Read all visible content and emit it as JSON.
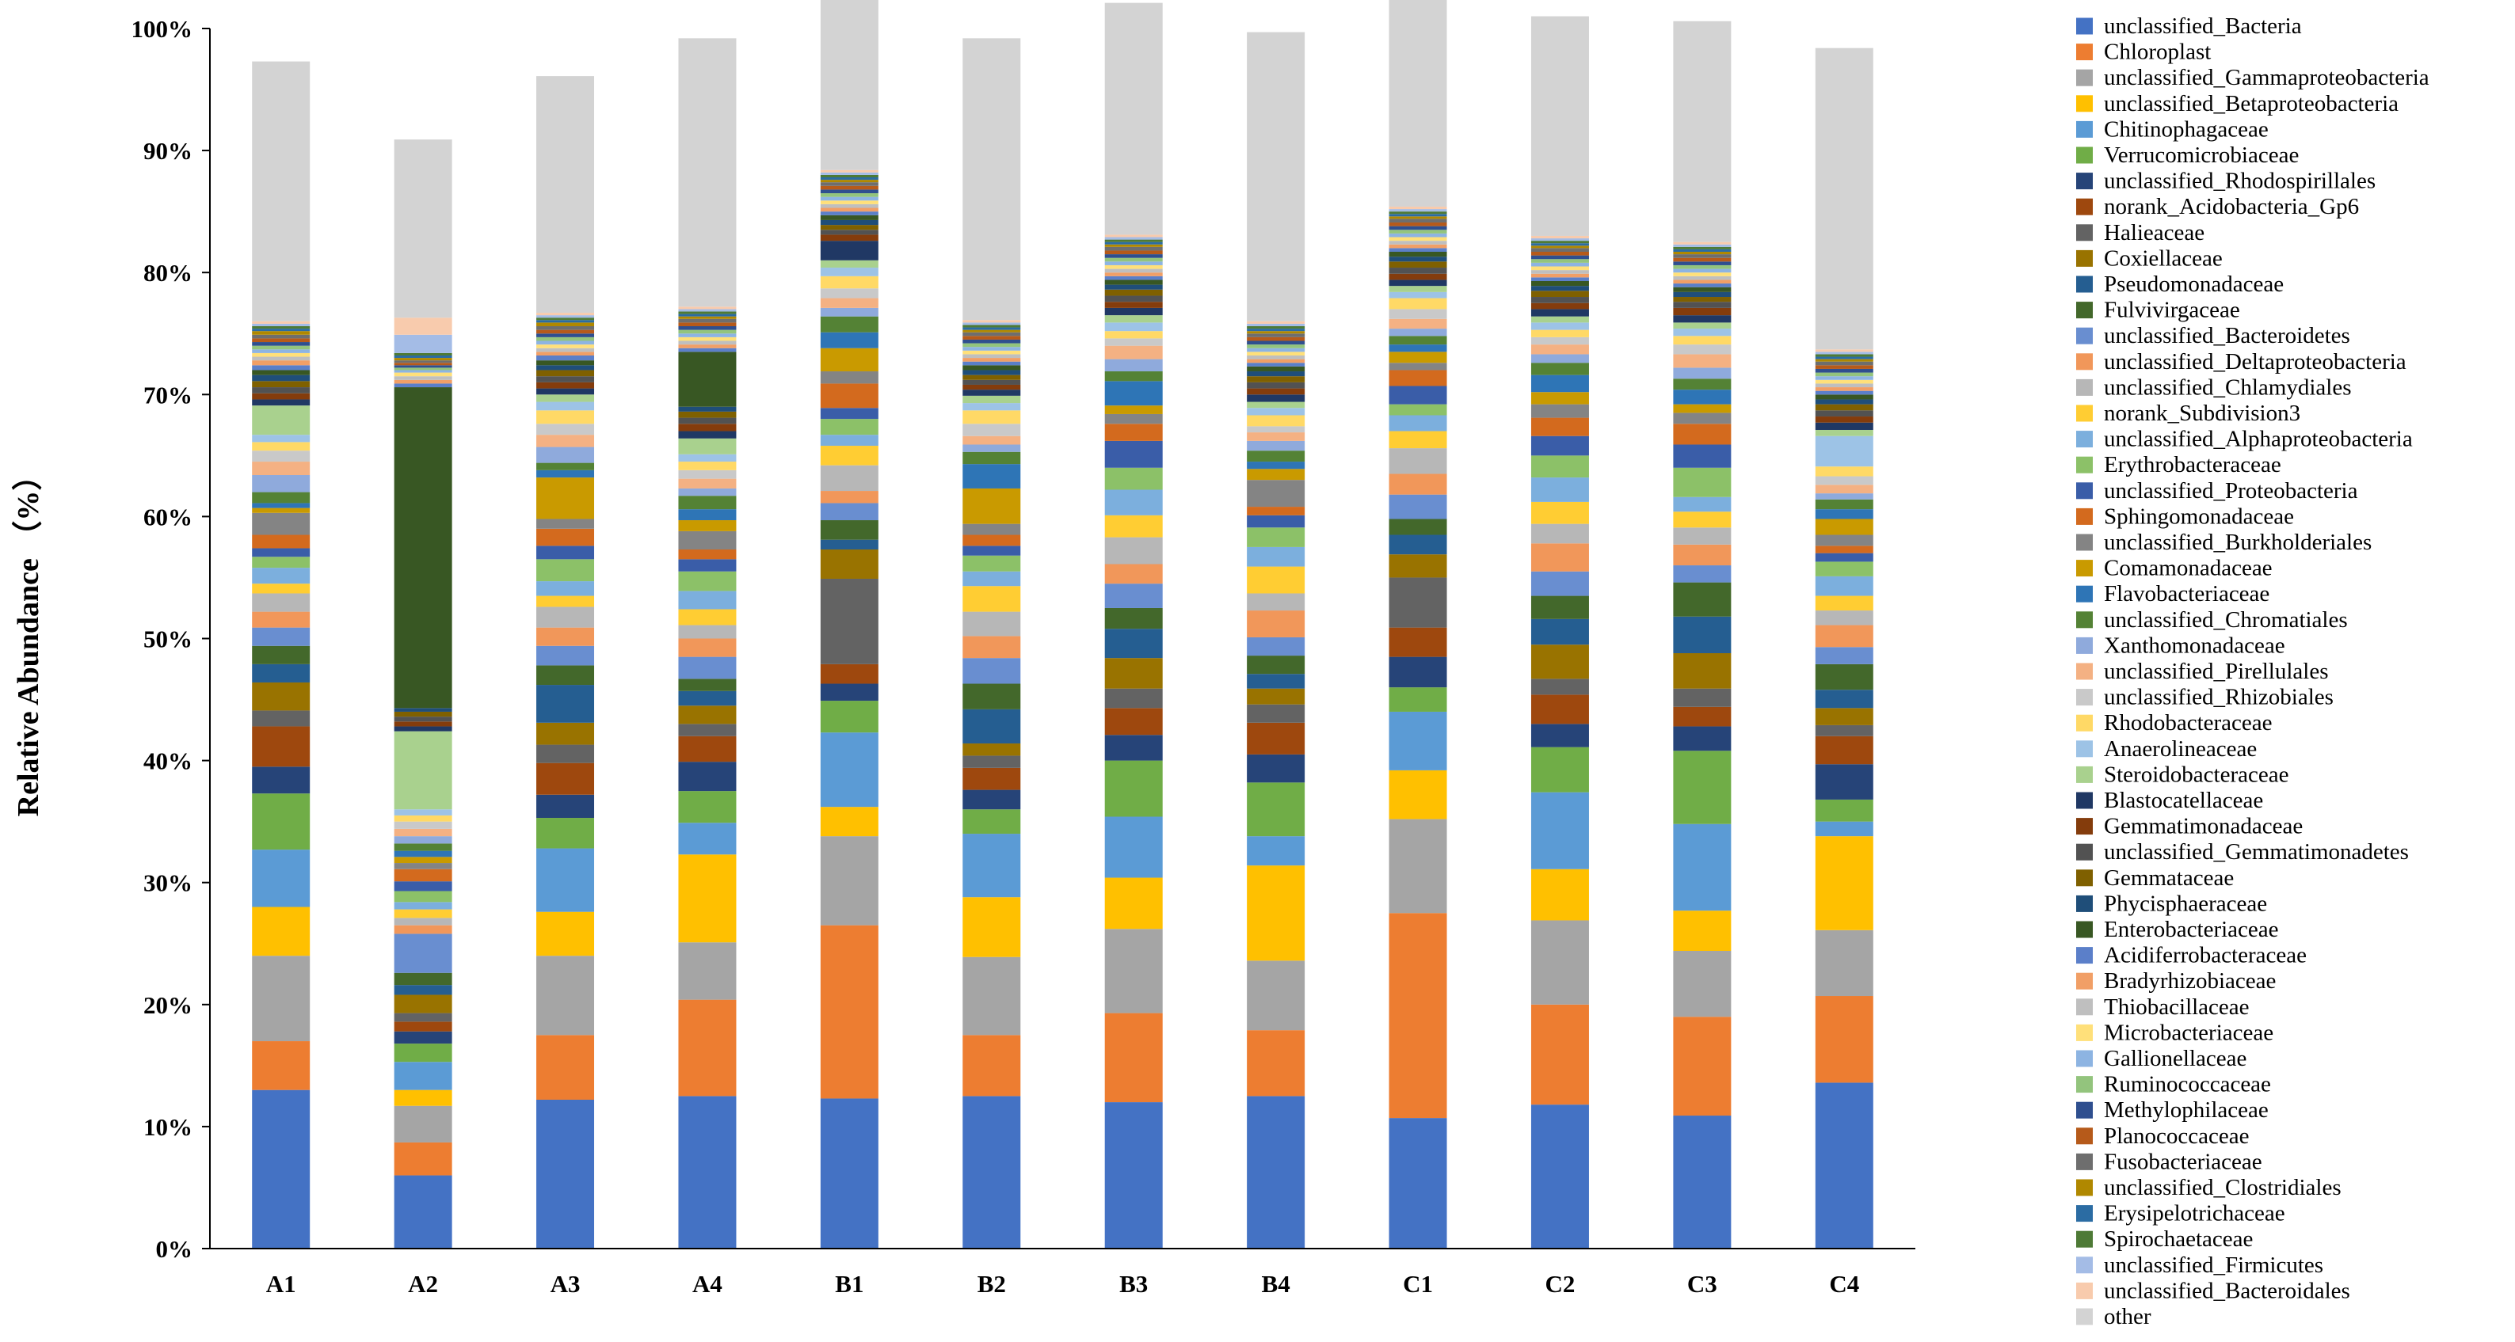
{
  "chart_data": {
    "type": "bar",
    "stacked": true,
    "ylabel": "Relative Abundance （%）",
    "xlabel": "",
    "ylim": [
      0,
      100
    ],
    "yticks": [
      "0%",
      "10%",
      "20%",
      "30%",
      "40%",
      "50%",
      "60%",
      "70%",
      "80%",
      "90%",
      "100%"
    ],
    "grid": false,
    "legend_position": "right",
    "categories": [
      "A1",
      "A2",
      "A3",
      "A4",
      "B1",
      "B2",
      "B3",
      "B4",
      "C1",
      "C2",
      "C3",
      "C4"
    ],
    "series": [
      {
        "name": "unclassified_Bacteria",
        "color": "#4472C4",
        "values": [
          13.0,
          6.0,
          12.2,
          12.5,
          12.3,
          12.5,
          12.0,
          12.5,
          10.7,
          11.8,
          10.9,
          13.6
        ]
      },
      {
        "name": "Chloroplast",
        "color": "#ED7D31",
        "values": [
          4.0,
          2.7,
          5.3,
          7.9,
          14.2,
          5.0,
          7.3,
          5.4,
          16.8,
          8.2,
          8.1,
          7.1
        ]
      },
      {
        "name": "unclassified_Gammaproteobacteria",
        "color": "#A5A5A5",
        "values": [
          7.0,
          3.0,
          6.5,
          4.7,
          7.3,
          6.4,
          6.9,
          5.7,
          7.7,
          6.9,
          5.4,
          5.4
        ]
      },
      {
        "name": "unclassified_Betaproteobacteria",
        "color": "#FFC000",
        "values": [
          4.0,
          1.3,
          3.6,
          7.2,
          2.4,
          4.9,
          4.2,
          7.8,
          4.0,
          4.2,
          3.3,
          7.7
        ]
      },
      {
        "name": "Chitinophagaceae",
        "color": "#5B9BD5",
        "values": [
          4.7,
          2.3,
          5.2,
          2.6,
          6.1,
          5.2,
          5.0,
          2.4,
          4.8,
          6.3,
          7.1,
          1.2
        ]
      },
      {
        "name": "Verrucomicrobiaceae",
        "color": "#70AD47",
        "values": [
          4.6,
          1.5,
          2.5,
          2.6,
          2.6,
          2.0,
          4.6,
          4.4,
          2.0,
          3.7,
          6.0,
          1.8
        ]
      },
      {
        "name": "unclassified_Rhodospirillales",
        "color": "#264478",
        "values": [
          2.2,
          1.0,
          1.9,
          2.4,
          1.4,
          1.6,
          2.1,
          2.3,
          2.5,
          1.9,
          2.0,
          2.9
        ]
      },
      {
        "name": "norank_Acidobacteria_Gp6",
        "color": "#9E480E",
        "values": [
          3.3,
          0.8,
          2.6,
          2.1,
          1.6,
          1.8,
          2.2,
          2.6,
          2.4,
          2.4,
          1.6,
          2.3
        ]
      },
      {
        "name": "Halieaceae",
        "color": "#636363",
        "values": [
          1.3,
          0.7,
          1.5,
          1.0,
          7.0,
          1.0,
          1.6,
          1.5,
          4.1,
          1.3,
          1.5,
          0.9
        ]
      },
      {
        "name": "Coxiellaceae",
        "color": "#997300",
        "values": [
          2.3,
          1.5,
          1.8,
          1.5,
          2.4,
          1.0,
          2.5,
          1.3,
          1.9,
          2.8,
          2.9,
          1.4
        ]
      },
      {
        "name": "Pseudomonadaceae",
        "color": "#255E91",
        "values": [
          1.5,
          0.8,
          3.1,
          1.2,
          0.8,
          2.8,
          2.4,
          1.2,
          1.6,
          2.1,
          3.0,
          1.5
        ]
      },
      {
        "name": "Fulvivirgaceae",
        "color": "#43682B",
        "values": [
          1.5,
          1.0,
          1.6,
          1.0,
          1.6,
          2.1,
          1.7,
          1.5,
          1.3,
          1.9,
          2.8,
          2.1
        ]
      },
      {
        "name": "unclassified_Bacteroidetes",
        "color": "#698ED0",
        "values": [
          1.5,
          3.2,
          1.6,
          1.8,
          1.4,
          2.1,
          2.0,
          1.5,
          2.0,
          2.0,
          1.4,
          1.4
        ]
      },
      {
        "name": "unclassified_Deltaproteobacteria",
        "color": "#F1975A",
        "values": [
          1.3,
          0.7,
          1.5,
          1.5,
          1.0,
          1.8,
          1.6,
          2.2,
          1.7,
          2.3,
          1.7,
          1.8
        ]
      },
      {
        "name": "unclassified_Chlamydiales",
        "color": "#B7B7B7",
        "values": [
          1.5,
          0.6,
          1.7,
          1.1,
          2.1,
          2.0,
          2.2,
          1.4,
          2.1,
          1.6,
          1.4,
          1.2
        ]
      },
      {
        "name": "norank_Subdivision3",
        "color": "#FFCD33",
        "values": [
          0.8,
          0.7,
          0.9,
          1.3,
          1.6,
          2.1,
          1.8,
          2.2,
          1.4,
          1.8,
          1.3,
          1.2
        ]
      },
      {
        "name": "unclassified_Alphaproteobacteria",
        "color": "#7CAFDD",
        "values": [
          1.3,
          0.6,
          1.2,
          1.5,
          0.9,
          1.2,
          2.1,
          1.6,
          1.3,
          2.0,
          1.2,
          1.6
        ]
      },
      {
        "name": "Erythrobacteraceae",
        "color": "#8CC168",
        "values": [
          0.9,
          0.9,
          1.8,
          1.6,
          1.3,
          1.3,
          1.8,
          1.6,
          0.9,
          1.8,
          2.4,
          1.2
        ]
      },
      {
        "name": "unclassified_Proteobacteria",
        "color": "#3A5DA8",
        "values": [
          0.7,
          0.8,
          1.1,
          1.0,
          0.9,
          0.8,
          2.2,
          1.0,
          1.5,
          1.6,
          1.9,
          0.7
        ]
      },
      {
        "name": "Sphingomonadaceae",
        "color": "#D36A1E",
        "values": [
          1.1,
          1.0,
          1.4,
          0.8,
          2.0,
          0.9,
          1.4,
          0.7,
          1.3,
          1.5,
          1.7,
          0.6
        ]
      },
      {
        "name": "unclassified_Burkholderiales",
        "color": "#848484",
        "values": [
          1.8,
          0.5,
          0.8,
          1.5,
          1.0,
          0.9,
          0.8,
          2.2,
          0.6,
          1.1,
          0.9,
          0.9
        ]
      },
      {
        "name": "Comamonadaceae",
        "color": "#C99A00",
        "values": [
          0.4,
          0.5,
          3.4,
          0.9,
          1.9,
          2.9,
          0.7,
          0.9,
          0.9,
          1.0,
          0.7,
          1.3
        ]
      },
      {
        "name": "Flavobacteriaceae",
        "color": "#2E75B6",
        "values": [
          0.4,
          0.5,
          0.6,
          0.9,
          1.3,
          2.0,
          2.0,
          0.6,
          0.6,
          1.4,
          1.2,
          0.8
        ]
      },
      {
        "name": "unclassified_Chromatiales",
        "color": "#548235",
        "values": [
          0.9,
          0.6,
          0.6,
          1.1,
          1.3,
          1.0,
          0.8,
          0.9,
          0.7,
          1.0,
          0.9,
          0.8
        ]
      },
      {
        "name": "Xanthomonadaceae",
        "color": "#8FAADC",
        "values": [
          1.4,
          0.6,
          1.3,
          0.6,
          0.7,
          0.6,
          1.0,
          0.8,
          0.6,
          0.7,
          0.9,
          0.5
        ]
      },
      {
        "name": "unclassified_Pirellulales",
        "color": "#F4B183",
        "values": [
          1.1,
          0.6,
          1.0,
          0.8,
          0.8,
          0.7,
          1.1,
          0.7,
          0.8,
          0.8,
          1.1,
          0.7
        ]
      },
      {
        "name": "unclassified_Rhizobiales",
        "color": "#C9C9C9",
        "values": [
          0.9,
          0.6,
          0.9,
          0.7,
          0.8,
          1.0,
          0.6,
          0.5,
          0.8,
          0.6,
          0.8,
          0.7
        ]
      },
      {
        "name": "Rhodobacteraceae",
        "color": "#FFD966",
        "values": [
          0.7,
          0.5,
          1.1,
          0.7,
          1.0,
          1.1,
          0.6,
          0.9,
          0.9,
          0.6,
          0.7,
          0.8
        ]
      },
      {
        "name": "Anaerolineaceae",
        "color": "#9DC3E6",
        "values": [
          0.6,
          0.5,
          0.7,
          0.6,
          0.7,
          0.6,
          0.7,
          0.6,
          0.5,
          0.6,
          0.6,
          2.5
        ]
      },
      {
        "name": "Steroidobacteraceae",
        "color": "#A9D18E",
        "values": [
          2.4,
          6.4,
          0.6,
          1.3,
          0.6,
          0.6,
          0.6,
          0.5,
          0.5,
          0.5,
          0.5,
          0.5
        ]
      },
      {
        "name": "Blastocatellaceae",
        "color": "#203864",
        "values": [
          0.5,
          0.4,
          0.5,
          0.6,
          1.6,
          0.5,
          0.6,
          0.6,
          0.5,
          0.6,
          0.6,
          0.6
        ]
      },
      {
        "name": "Gemmatimonadaceae",
        "color": "#843C0C",
        "values": [
          0.5,
          0.4,
          0.5,
          0.6,
          0.5,
          0.4,
          0.5,
          0.5,
          0.5,
          0.5,
          0.6,
          0.5
        ]
      },
      {
        "name": "unclassified_Gemmatimonadetes",
        "color": "#525252",
        "values": [
          0.5,
          0.4,
          0.5,
          0.5,
          0.4,
          0.4,
          0.5,
          0.5,
          0.5,
          0.5,
          0.5,
          0.5
        ]
      },
      {
        "name": "Gemmataceae",
        "color": "#7F6000",
        "values": [
          0.5,
          0.4,
          0.5,
          0.5,
          0.4,
          0.4,
          0.5,
          0.5,
          0.5,
          0.5,
          0.4,
          0.5
        ]
      },
      {
        "name": "Phycisphaeraceae",
        "color": "#1F4E79",
        "values": [
          0.5,
          0.3,
          0.4,
          0.4,
          0.4,
          0.4,
          0.4,
          0.4,
          0.4,
          0.4,
          0.4,
          0.4
        ]
      },
      {
        "name": "Enterobacteriaceae",
        "color": "#385723",
        "values": [
          0.4,
          26.3,
          0.4,
          4.5,
          0.4,
          0.4,
          0.4,
          0.4,
          0.4,
          0.4,
          0.4,
          0.4
        ]
      },
      {
        "name": "Acidiferrobacteraceae",
        "color": "#5B7FC9",
        "values": [
          0.4,
          0.3,
          0.4,
          0.3,
          0.3,
          0.3,
          0.3,
          0.3,
          0.3,
          0.3,
          0.3,
          0.3
        ]
      },
      {
        "name": "Bradyrhizobiaceae",
        "color": "#F19F66",
        "values": [
          0.4,
          0.3,
          0.3,
          0.3,
          0.3,
          0.3,
          0.3,
          0.3,
          0.3,
          0.3,
          0.3,
          0.3
        ]
      },
      {
        "name": "Thiobacillaceae",
        "color": "#BFBFBF",
        "values": [
          0.3,
          0.3,
          0.3,
          0.3,
          0.3,
          0.3,
          0.3,
          0.3,
          0.3,
          0.3,
          0.3,
          0.3
        ]
      },
      {
        "name": "Microbacteriaceae",
        "color": "#FFE07A",
        "values": [
          0.3,
          0.3,
          0.3,
          0.3,
          0.3,
          0.3,
          0.3,
          0.3,
          0.3,
          0.3,
          0.3,
          0.3
        ]
      },
      {
        "name": "Gallionellaceae",
        "color": "#8DB4E2",
        "values": [
          0.3,
          0.2,
          0.3,
          0.3,
          0.3,
          0.3,
          0.3,
          0.3,
          0.3,
          0.3,
          0.3,
          0.3
        ]
      },
      {
        "name": "Ruminococcaceae",
        "color": "#93C47D",
        "values": [
          0.3,
          0.2,
          0.3,
          0.3,
          0.3,
          0.3,
          0.3,
          0.3,
          0.3,
          0.3,
          0.3,
          0.3
        ]
      },
      {
        "name": "Methylophilaceae",
        "color": "#2F4F8F",
        "values": [
          0.3,
          0.2,
          0.3,
          0.3,
          0.3,
          0.3,
          0.3,
          0.3,
          0.3,
          0.3,
          0.3,
          0.3
        ]
      },
      {
        "name": "Planococcaceae",
        "color": "#B65A1A",
        "values": [
          0.3,
          0.2,
          0.3,
          0.3,
          0.3,
          0.3,
          0.3,
          0.3,
          0.3,
          0.3,
          0.3,
          0.3
        ]
      },
      {
        "name": "Fusobacteriaceae",
        "color": "#6E6E6E",
        "values": [
          0.3,
          0.2,
          0.3,
          0.3,
          0.3,
          0.3,
          0.3,
          0.3,
          0.3,
          0.3,
          0.3,
          0.3
        ]
      },
      {
        "name": "unclassified_Clostridiales",
        "color": "#B08800",
        "values": [
          0.3,
          0.2,
          0.3,
          0.2,
          0.2,
          0.2,
          0.2,
          0.2,
          0.2,
          0.2,
          0.2,
          0.2
        ]
      },
      {
        "name": "Erysipelotrichaceae",
        "color": "#2B6CA3",
        "values": [
          0.2,
          0.2,
          0.2,
          0.2,
          0.2,
          0.2,
          0.2,
          0.2,
          0.2,
          0.2,
          0.2,
          0.2
        ]
      },
      {
        "name": "Spirochaetaceae",
        "color": "#4E7A36",
        "values": [
          0.2,
          0.2,
          0.2,
          0.2,
          0.2,
          0.2,
          0.2,
          0.2,
          0.2,
          0.2,
          0.2,
          0.2
        ]
      },
      {
        "name": "unclassified_Firmicutes",
        "color": "#A4BCE6",
        "values": [
          0.2,
          1.5,
          0.2,
          0.2,
          0.2,
          0.2,
          0.2,
          0.2,
          0.2,
          0.2,
          0.2,
          0.2
        ]
      },
      {
        "name": "unclassified_Bacteroidales",
        "color": "#F8CBAD",
        "values": [
          0.2,
          1.4,
          0.2,
          0.2,
          0.2,
          0.2,
          0.2,
          0.2,
          0.2,
          0.2,
          0.2,
          0.2
        ]
      },
      {
        "name": "other",
        "color": "#D3D3D3",
        "values": [
          21.3,
          14.6,
          19.4,
          22.0,
          16.2,
          23.1,
          19.0,
          23.7,
          17.9,
          18.0,
          18.1,
          24.7
        ]
      }
    ]
  }
}
